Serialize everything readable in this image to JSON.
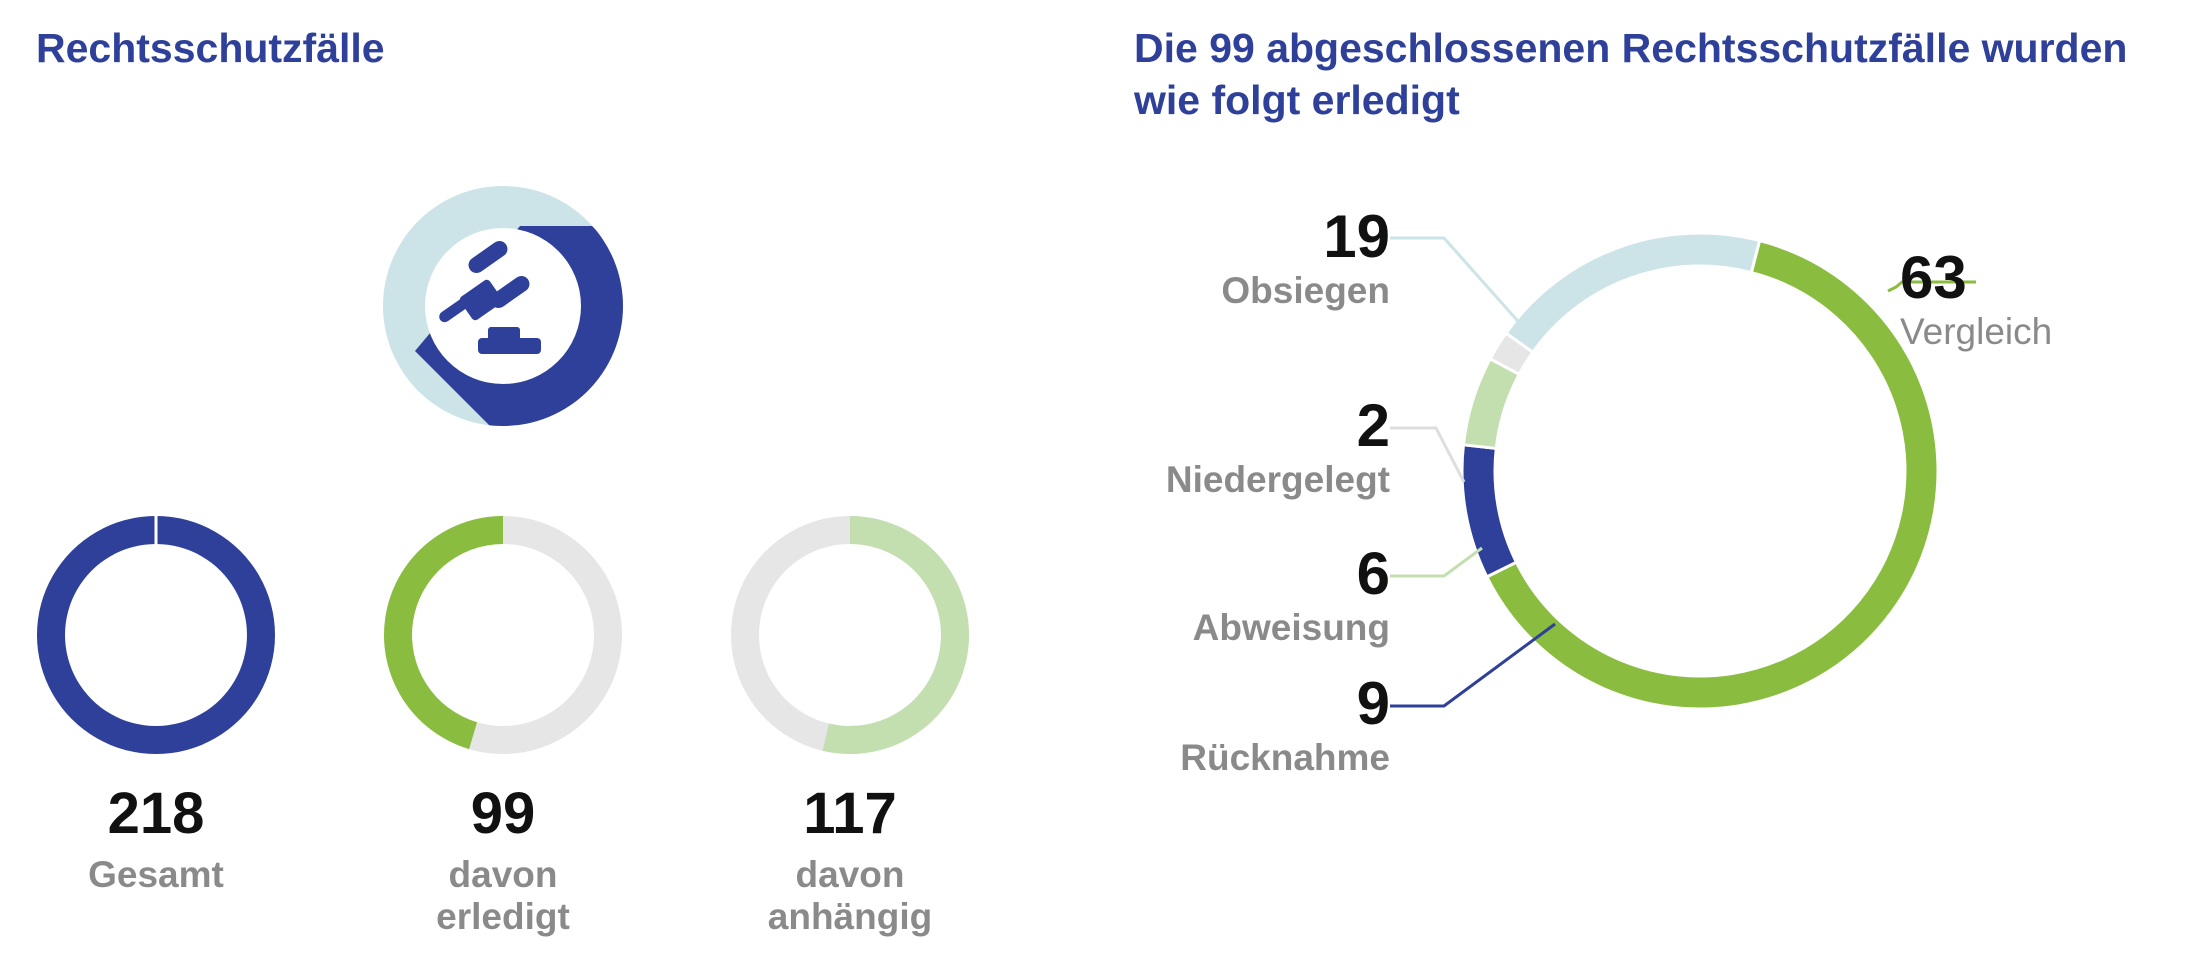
{
  "titles": {
    "left": "Rechtsschutzfälle",
    "right": "Die 99 abgeschlossenen Rechtsschutzfälle wurden wie folgt erledigt"
  },
  "icon": "gavel-icon",
  "colors": {
    "title": "#2e4099",
    "navy": "#2e4099",
    "green": "#8abd3f",
    "light_green": "#c3dfb0",
    "light_blue": "#cce3e7",
    "light_gray": "#e6e6e6",
    "value_text": "#111111",
    "label_text": "#8a8a8a"
  },
  "chart_data": [
    {
      "type": "pie",
      "name": "summary-gesamt",
      "value": 218,
      "label": [
        "Gesamt"
      ],
      "fraction": 1.0,
      "color": "#2e4099",
      "track_color": "#e6e6e6"
    },
    {
      "type": "pie",
      "name": "summary-erledigt",
      "value": 99,
      "label": [
        "davon",
        "erledigt"
      ],
      "fraction": 0.454,
      "color": "#8abd3f",
      "track_color": "#e6e6e6"
    },
    {
      "type": "pie",
      "name": "summary-anhaengig",
      "value": 117,
      "label": [
        "davon",
        "anhängig"
      ],
      "fraction": 0.537,
      "color": "#c3dfb0",
      "track_color": "#e6e6e6"
    },
    {
      "type": "pie",
      "name": "erledigung-breakdown",
      "categories": [
        "Vergleich",
        "Rücknahme",
        "Abweisung",
        "Niedergelegt",
        "Obsiegen"
      ],
      "values": [
        63,
        9,
        6,
        2,
        19
      ],
      "colors": [
        "#8abd3f",
        "#2e4099",
        "#c3dfb0",
        "#e6e6e6",
        "#cce3e7"
      ]
    }
  ]
}
